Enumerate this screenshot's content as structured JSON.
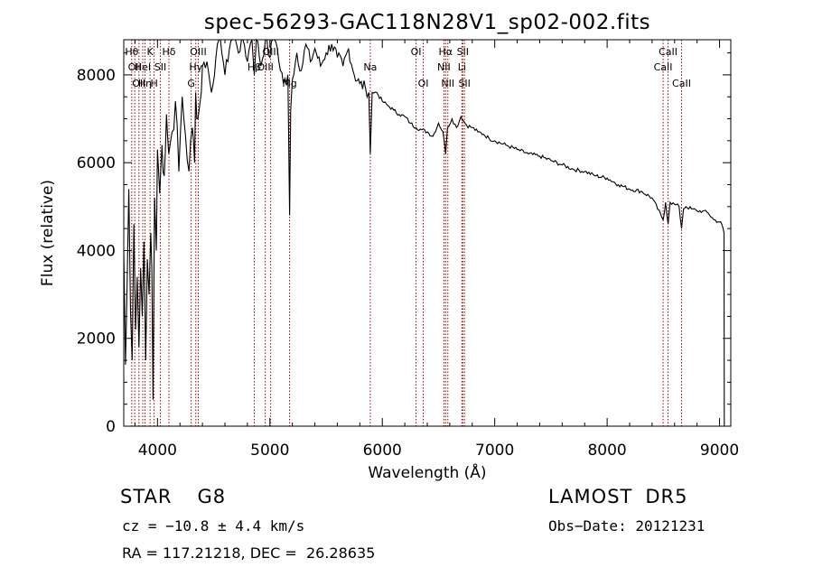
{
  "chart_data": {
    "type": "line",
    "title": "spec-56293-GAC118N28V1_sp02-002.fits",
    "xlabel": "Wavelength (Å)",
    "ylabel": "Flux (relative)",
    "xlim": [
      3700,
      9100
    ],
    "ylim": [
      0,
      8800
    ],
    "x_ticks": [
      4000,
      5000,
      6000,
      7000,
      8000,
      9000
    ],
    "y_ticks": [
      0,
      2000,
      4000,
      6000,
      8000
    ],
    "grid": false,
    "line_color": "#000000",
    "marker_color": "#a00000",
    "series": [
      {
        "x": [
          3700,
          3715,
          3730,
          3745,
          3760,
          3775,
          3790,
          3805,
          3820,
          3835,
          3850,
          3865,
          3880,
          3895,
          3910,
          3925,
          3940,
          3950,
          3960,
          3968,
          3975,
          3990,
          4000,
          4020,
          4040,
          4060,
          4080,
          4100,
          4130,
          4160,
          4190,
          4220,
          4250,
          4280,
          4310,
          4330,
          4340,
          4360,
          4380,
          4400,
          4440,
          4480,
          4520,
          4560,
          4600,
          4640,
          4680,
          4720,
          4760,
          4800,
          4840,
          4861,
          4880,
          4920,
          4960,
          5000,
          5040,
          5080,
          5120,
          5160,
          5175,
          5185,
          5200,
          5240,
          5280,
          5320,
          5360,
          5400,
          5450,
          5500,
          5550,
          5600,
          5650,
          5700,
          5750,
          5800,
          5850,
          5880,
          5893,
          5910,
          5950,
          6000,
          6050,
          6100,
          6150,
          6200,
          6250,
          6300,
          6350,
          6400,
          6450,
          6500,
          6540,
          6563,
          6580,
          6620,
          6660,
          6700,
          6750,
          6800,
          6850,
          6900,
          6950,
          7000,
          7100,
          7200,
          7300,
          7400,
          7500,
          7600,
          7700,
          7800,
          7900,
          8000,
          8100,
          8200,
          8300,
          8400,
          8498,
          8520,
          8542,
          8560,
          8600,
          8640,
          8662,
          8680,
          8700,
          8750,
          8800,
          8850,
          8900,
          8950,
          9000,
          9020,
          9040,
          9042,
          9050
        ],
        "y": [
          4000,
          1400,
          3200,
          5400,
          2600,
          1500,
          4600,
          2200,
          3400,
          1800,
          3600,
          2500,
          4200,
          1500,
          3800,
          3000,
          4400,
          3600,
          600,
          3400,
          5200,
          4000,
          6300,
          5300,
          6400,
          5700,
          7100,
          6200,
          6700,
          7400,
          5800,
          7500,
          6600,
          5800,
          6800,
          6000,
          7600,
          7000,
          7400,
          8200,
          8300,
          7600,
          8400,
          8900,
          8000,
          8600,
          9200,
          8500,
          8900,
          8300,
          9000,
          8000,
          8900,
          8200,
          8800,
          8400,
          9100,
          8300,
          7800,
          8000,
          4800,
          7200,
          7900,
          8500,
          8100,
          8700,
          8300,
          8600,
          8200,
          8500,
          8700,
          8400,
          8200,
          8600,
          8000,
          7800,
          7700,
          7600,
          6200,
          7600,
          7600,
          7400,
          7300,
          7200,
          7100,
          7050,
          6900,
          6800,
          6750,
          6700,
          6600,
          6900,
          6700,
          6200,
          6800,
          7000,
          6800,
          7050,
          6850,
          6800,
          6700,
          6650,
          6550,
          6500,
          6400,
          6300,
          6200,
          6150,
          6050,
          5950,
          5850,
          5800,
          5700,
          5650,
          5500,
          5400,
          5350,
          5200,
          4700,
          5100,
          4600,
          5100,
          5050,
          5000,
          4500,
          4950,
          5000,
          4950,
          4900,
          4900,
          4850,
          4700,
          4650,
          4600,
          4400,
          0,
          0
        ]
      }
    ],
    "line_markers": [
      {
        "x": 3771,
        "label": "Hθ",
        "tier": 1
      },
      {
        "x": 3798,
        "label": "OII",
        "tier": 2
      },
      {
        "x": 3835,
        "label": "OII",
        "tier": 3
      },
      {
        "x": 3869,
        "label": "HeI",
        "tier": 2
      },
      {
        "x": 3889,
        "label": "Hη",
        "tier": 3
      },
      {
        "x": 3934,
        "label": "K",
        "tier": 1
      },
      {
        "x": 3970,
        "label": "H",
        "tier": 3
      },
      {
        "x": 4026,
        "label": "SII",
        "tier": 2
      },
      {
        "x": 4102,
        "label": "Hδ",
        "tier": 1
      },
      {
        "x": 4300,
        "label": "G",
        "tier": 3
      },
      {
        "x": 4341,
        "label": "Hγ",
        "tier": 2
      },
      {
        "x": 4363,
        "label": "OIII",
        "tier": 1
      },
      {
        "x": 4861,
        "label": "Hβ",
        "tier": 2
      },
      {
        "x": 4959,
        "label": "OIII",
        "tier": 2
      },
      {
        "x": 5007,
        "label": "OIII",
        "tier": 1
      },
      {
        "x": 5175,
        "label": "Mg",
        "tier": 3
      },
      {
        "x": 5893,
        "label": "Na",
        "tier": 2
      },
      {
        "x": 6300,
        "label": "OI",
        "tier": 1
      },
      {
        "x": 6364,
        "label": "OI",
        "tier": 3
      },
      {
        "x": 6548,
        "label": "NII",
        "tier": 2
      },
      {
        "x": 6563,
        "label": "Hα",
        "tier": 1
      },
      {
        "x": 6583,
        "label": "NII",
        "tier": 3
      },
      {
        "x": 6708,
        "label": "Li",
        "tier": 2
      },
      {
        "x": 6716,
        "label": "SII",
        "tier": 1
      },
      {
        "x": 6731,
        "label": "SII",
        "tier": 3
      },
      {
        "x": 8498,
        "label": "CaII",
        "tier": 2
      },
      {
        "x": 8542,
        "label": "CaII",
        "tier": 1
      },
      {
        "x": 8662,
        "label": "CaII",
        "tier": 3
      }
    ]
  },
  "info": {
    "object_class": "STAR",
    "subclass": "G8",
    "survey": "LAMOST",
    "release": "DR5",
    "cz": "cz = −10.8 ± 4.4 km/s",
    "obs_date": "Obs−Date: 20121231",
    "radec": "RA = 117.21218, DEC =  26.28635"
  }
}
